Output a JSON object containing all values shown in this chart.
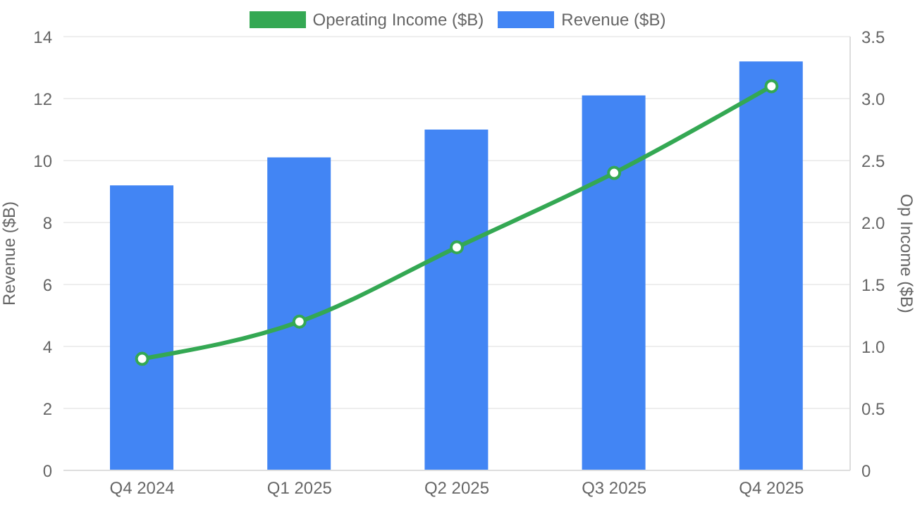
{
  "chart_data": {
    "type": "bar",
    "categories": [
      "Q4 2024",
      "Q1 2025",
      "Q2 2025",
      "Q3 2025",
      "Q4 2025"
    ],
    "ylabel": "Revenue ($B)",
    "y2label": "Op Income ($B)",
    "series": [
      {
        "name": "Operating Income ($B)",
        "type": "line",
        "axis": "y2",
        "color": "#34a853",
        "values": [
          0.9,
          1.2,
          1.8,
          2.4,
          3.1
        ]
      },
      {
        "name": "Revenue ($B)",
        "color": "#4285f4",
        "values": [
          9.2,
          10.1,
          11.0,
          12.1,
          13.2
        ]
      }
    ],
    "ylim": [
      0,
      14
    ],
    "yticks": [
      0,
      2,
      4,
      6,
      8,
      10,
      12,
      14
    ],
    "y2lim": [
      0,
      3.5
    ],
    "y2ticks": [
      0,
      {
        "value": 0.5,
        "label": "0.5"
      },
      {
        "value": 1,
        "label": "1.0"
      },
      {
        "value": 1.5,
        "label": "1.5"
      },
      {
        "value": 2,
        "label": "2.0"
      },
      {
        "value": 2.5,
        "label": "2.5"
      },
      {
        "value": 3,
        "label": "3.0"
      },
      {
        "value": 3.5,
        "label": "3.5"
      }
    ],
    "grid": "y",
    "legend": "top",
    "marker": "circle",
    "line_style": "solid"
  }
}
